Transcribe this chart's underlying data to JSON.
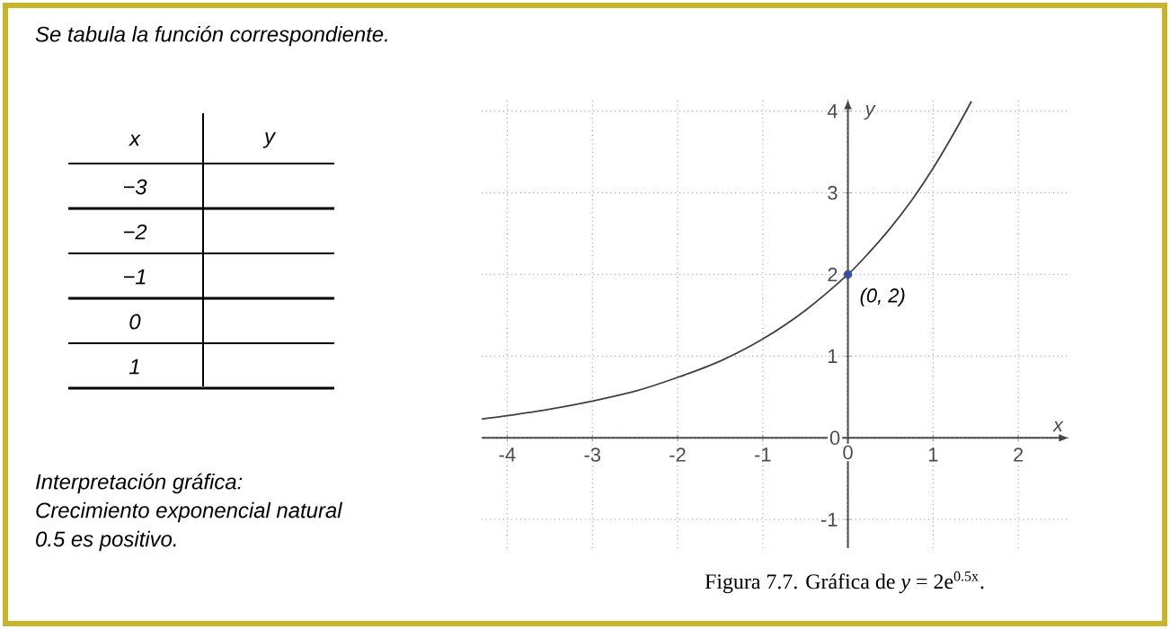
{
  "chart_data": {
    "type": "line",
    "title": "Figura 7.7. Gráfica de *y* = 2e$^{0.5x}$.",
    "xlabel": "x",
    "ylabel": "y",
    "xlim": [
      -4.3,
      2.6
    ],
    "ylim": [
      -1.35,
      4.15
    ],
    "xticks": [
      -4,
      -3,
      -2,
      -1,
      0,
      1,
      2
    ],
    "yticks": [
      -1,
      0,
      1,
      2,
      3,
      4
    ],
    "grid": true,
    "series": [
      {
        "color": "#404040",
        "x": [
          -4.3,
          -4,
          -3.5,
          -3,
          -2.5,
          -2,
          -1.5,
          -1,
          -0.5,
          0,
          0.25,
          0.5,
          0.75,
          1,
          1.25,
          1.45
        ],
        "values": [
          0.23,
          0.27,
          0.35,
          0.45,
          0.57,
          0.74,
          0.94,
          1.21,
          1.56,
          2,
          2.27,
          2.57,
          2.91,
          3.3,
          3.74,
          4.12
        ]
      },
      {
        "type": "scatter",
        "color": "#3b4ea0",
        "marker": "circle",
        "x": [
          0
        ],
        "values": [
          2
        ]
      }
    ],
    "annotations": [
      {
        "text": "(0, 2)",
        "x": 0,
        "y": 2
      },
      "Se tabula la función correspondiente.",
      "x",
      "y",
      "−3",
      "−2",
      "−1",
      "0",
      "1",
      "Interpretación gráfica:",
      "Crecimiento exponencial natural",
      "0.5 es positivo."
    ]
  }
}
